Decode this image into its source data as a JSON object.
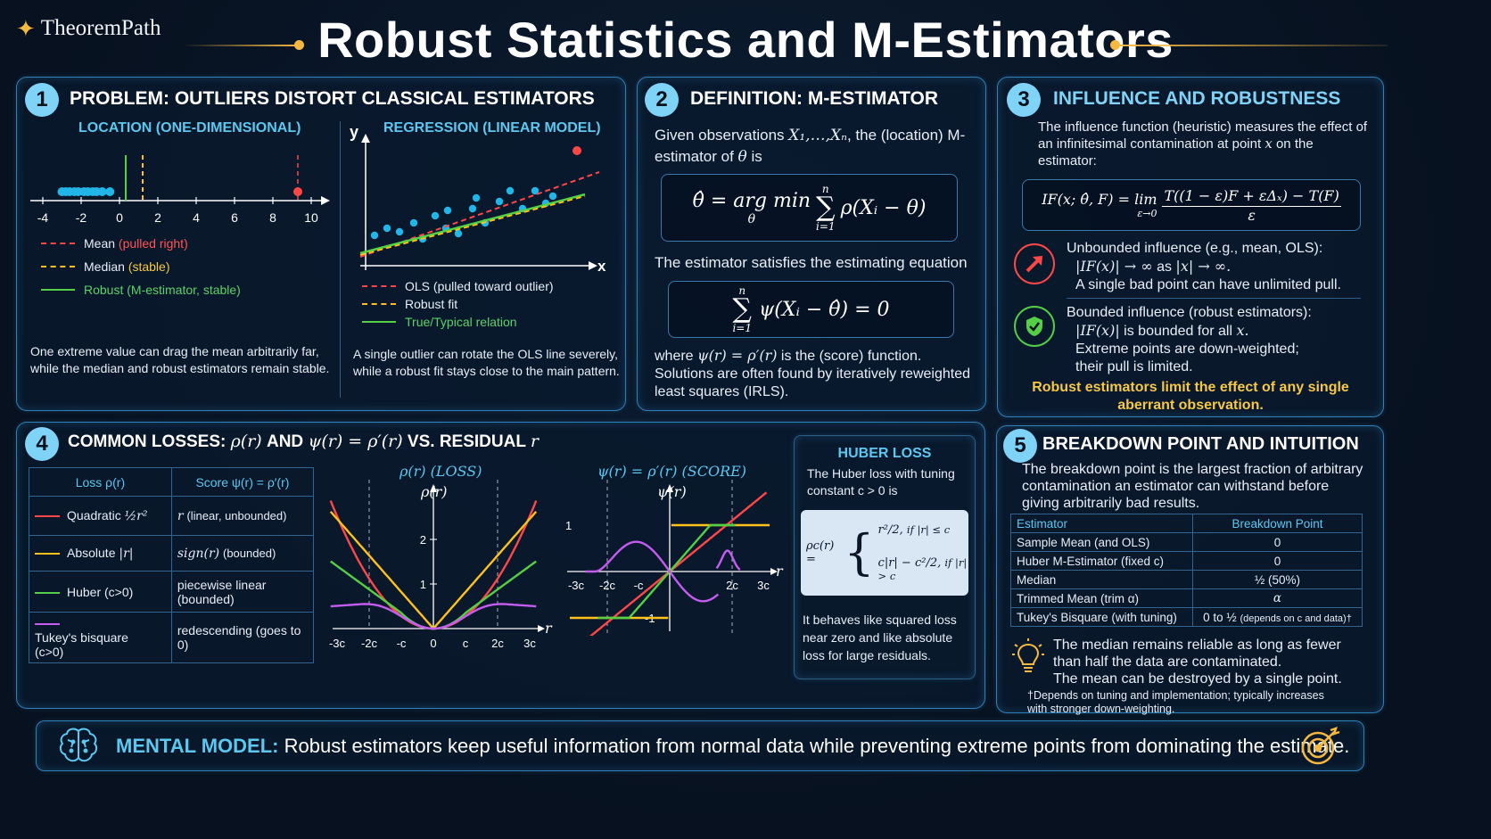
{
  "header": {
    "brand": "TheoremPath",
    "title": "Robust Statistics and M-Estimators"
  },
  "panel1": {
    "number": "1",
    "title": "PROBLEM: OUTLIERS DISTORT CLASSICAL ESTIMATORS",
    "location_title": "LOCATION (ONE-DIMENSIONAL)",
    "regression_title": "REGRESSION (LINEAR MODEL)",
    "axis_ticks": [
      "-4",
      "-2",
      "0",
      "2",
      "4",
      "6",
      "8",
      "10"
    ],
    "legend_mean": "Mean",
    "legend_mean_note": "(pulled right)",
    "legend_median": "Median",
    "legend_median_note": "(stable)",
    "legend_robust": "Robust (M-estimator, stable)",
    "location_caption": "One extreme value can drag the mean arbitrarily far, while the median and robust estimators remain stable.",
    "y_label": "y",
    "x_label": "x",
    "legend_ols": "OLS (pulled toward outlier)",
    "legend_robust_fit": "Robust fit",
    "legend_true": "True/Typical relation",
    "regression_caption": "A single outlier can rotate the OLS line severely, while a robust fit stays close to the main pattern."
  },
  "panel2": {
    "number": "2",
    "title": "DEFINITION: M-ESTIMATOR",
    "intro_a": "Given observations",
    "intro_obs": "X₁,…,Xₙ",
    "intro_b": ", the (location) M-estimator of",
    "intro_theta": "θ",
    "intro_c": " is",
    "formula_lhs": "θ̂ = arg min",
    "formula_under": "θ",
    "formula_sum_top": "n",
    "formula_sum_bottom": "i=1",
    "formula_rhs": "ρ(Xᵢ − θ)",
    "eq_intro": "The estimator satisfies the estimating equation",
    "eq_rhs": "ψ(Xᵢ − θ̂) = 0",
    "where_a": "where",
    "where_math": "ψ(r) = ρ′(r)",
    "where_b": " is the (score) function.",
    "where_c": "Solutions are often found by iteratively reweighted least squares (IRLS)."
  },
  "panel3": {
    "number": "3",
    "title": "INFLUENCE AND ROBUSTNESS",
    "intro": "The influence function (heuristic) measures the effect of an infinitesimal contamination at point",
    "intro_x": "x",
    "intro_end": "on the estimator:",
    "if_lhs": "IF(x; θ̂, F) = lim",
    "if_lim": "ε→0",
    "if_num": "T((1 − ε)F + εΔₓ) − T(F)",
    "if_den": "ε",
    "unbounded_title": "Unbounded influence",
    "unbounded_note": " (e.g., mean, OLS):",
    "unbounded_math": "|IF(x)| → ∞",
    "unbounded_as": " as ",
    "unbounded_math2": "|x| → ∞.",
    "unbounded_line2": "A single bad point can have unlimited pull.",
    "bounded_title": "Bounded influence (robust estimators):",
    "bounded_math": "|IF(x)|",
    "bounded_line1": " is bounded for all ",
    "bounded_x": "x.",
    "bounded_line2": "Extreme points are down-weighted;",
    "bounded_line3": "their pull is limited.",
    "conclusion": "Robust estimators limit the effect of any single aberrant observation."
  },
  "panel4": {
    "number": "4",
    "title_a": "COMMON LOSSES: ",
    "title_m1": "ρ(r)",
    "title_b": " AND ",
    "title_m2": "ψ(r) = ρ′(r)",
    "title_c": " VS. RESIDUAL ",
    "title_m3": "r",
    "table_head_loss": "Loss ρ(r)",
    "table_head_score": "Score ψ(r) = ρ′(r)",
    "rows": [
      {
        "name": "Quadratic",
        "loss": "½r²",
        "score_math": "r",
        "score": "(linear, unbounded)"
      },
      {
        "name": "Absolute",
        "loss": "|r|",
        "score_math": "sign(r)",
        "score": "(bounded)"
      },
      {
        "name": "Huber (c>0)",
        "loss": "",
        "score_math": "",
        "score": "piecewise linear (bounded)"
      },
      {
        "name": "Tukey's bisquare (c>0)",
        "loss": "",
        "score_math": "",
        "score": "redescending (goes to 0)"
      }
    ],
    "loss_plot_title": "ρ(r)  (LOSS)",
    "loss_plot_ylabel": "ρ(r)",
    "score_plot_title": "ψ(r) = ρ′(r)  (SCORE)",
    "score_plot_ylabel": "ψ(r)",
    "r_label": "r",
    "loss_xticks": [
      "-3c",
      "-2c",
      "-c",
      "0",
      "c",
      "2c",
      "3c"
    ],
    "loss_yticks": [
      "1",
      "2"
    ],
    "score_xticks": [
      "-3c",
      "-2c",
      "-c",
      "2c",
      "3c"
    ],
    "score_yticks": [
      "1",
      "-1"
    ],
    "huber_title": "HUBER LOSS",
    "huber_intro": "The Huber loss with tuning constant c > 0 is",
    "huber_lhs": "ρc(r) =",
    "huber_case1": "r²/2,",
    "huber_cond1": "if |r| ≤ c",
    "huber_case2": "c|r| − c²/2,",
    "huber_cond2": "if |r| > c",
    "huber_caption": "It behaves like squared loss near zero and like absolute loss for large residuals.",
    "colors": {
      "quadratic": "#ff4747",
      "absolute": "#ffc21a",
      "huber": "#55cf45",
      "tukey": "#c55cf0"
    }
  },
  "panel5": {
    "number": "5",
    "title": "BREAKDOWN POINT AND INTUITION",
    "intro": "The breakdown point is the largest fraction of arbitrary contamination an estimator can withstand before giving arbitrarily bad results.",
    "head_estimator": "Estimator",
    "head_bp": "Breakdown Point",
    "rows": [
      {
        "estimator": "Sample Mean (and OLS)",
        "bp": "0"
      },
      {
        "estimator": "Huber M-Estimator (fixed c)",
        "bp": "0"
      },
      {
        "estimator": "Median",
        "bp": "½ (50%)"
      },
      {
        "estimator": "Trimmed Mean (trim α)",
        "bp": "α"
      },
      {
        "estimator": "Tukey's Bisquare (with tuning)",
        "bp": "0 to ½",
        "bp_note": "(depends on c and data)†"
      }
    ],
    "intuition_1": "The median remains reliable as long as fewer than half the data are contaminated.",
    "intuition_2": "The mean can be destroyed by a single point.",
    "footnote": "†Depends on tuning and implementation; typically increases with stronger down-weighting."
  },
  "footer": {
    "label": "MENTAL MODEL:",
    "text": "Robust estimators keep useful information from normal data while preventing extreme points from dominating the estimate."
  }
}
